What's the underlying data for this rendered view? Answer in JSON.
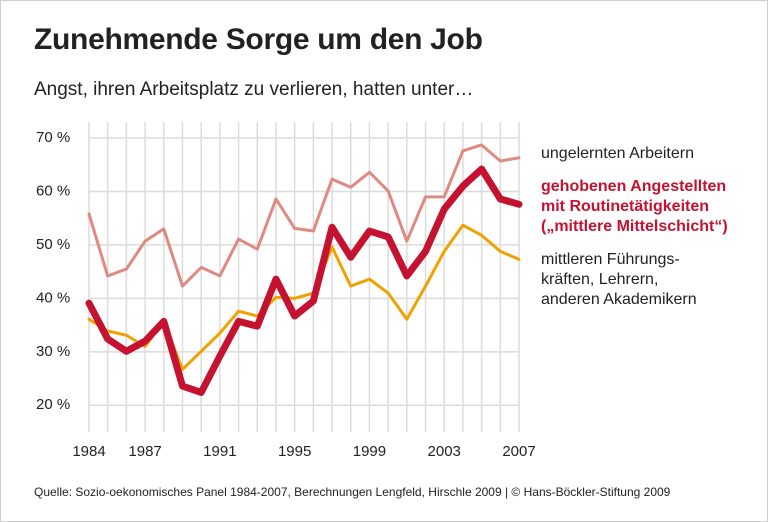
{
  "chart_data": {
    "type": "line",
    "title": "Zunehmende Sorge um den Job",
    "subtitle": "Angst, ihren Arbeitsplatz zu verlieren, hatten unter…",
    "source": "Quelle: Sozio-oekonomisches Panel 1984-2007, Berechnungen Lengfeld, Hirschle 2009  | © Hans-Böckler-Stiftung 2009",
    "x": [
      1984,
      1985,
      1986,
      1987,
      1988,
      1989,
      1990,
      1991,
      1992,
      1993,
      1994,
      1995,
      1996,
      1997,
      1998,
      1999,
      2000,
      2001,
      2002,
      2003,
      2004,
      2005,
      2006,
      2007
    ],
    "xlim": [
      1984,
      2007
    ],
    "xticks": [
      1984,
      1987,
      1991,
      1995,
      1999,
      2003,
      2007
    ],
    "ylim": [
      15,
      73
    ],
    "yticks": [
      {
        "value": 20,
        "label": "20 %"
      },
      {
        "value": 30,
        "label": "30 %"
      },
      {
        "value": 40,
        "label": "40 %"
      },
      {
        "value": 50,
        "label": "50 %"
      },
      {
        "value": 60,
        "label": "60 %"
      },
      {
        "value": 70,
        "label": "70 %"
      }
    ],
    "grid": true,
    "series": [
      {
        "name": "ungelernten Arbeitern",
        "color": "#df8a80",
        "line_width": 3,
        "values": [
          55.8,
          44.2,
          45.5,
          50.7,
          53,
          42.3,
          45.8,
          44.2,
          51.1,
          49.2,
          58.6,
          53.1,
          52.6,
          62.3,
          60.8,
          63.6,
          60.1,
          50.7,
          59,
          59,
          67.6,
          68.7,
          65.7,
          66.3
        ]
      },
      {
        "name": "gehobenen Angestellten\nmit Routinetätigkeiten\n(„mittlere Mittelschicht“)",
        "color": "#c41230",
        "line_width": 7,
        "values": [
          39.1,
          32.4,
          30.1,
          32,
          35.7,
          23.6,
          22.4,
          29.2,
          35.7,
          34.8,
          43.6,
          36.7,
          39.5,
          53.3,
          47.7,
          52.6,
          51.5,
          44.2,
          48.8,
          56.7,
          61,
          64.2,
          58.6,
          57.6
        ]
      },
      {
        "name": "mittleren Führungs-\nkräften, Lehrern,\nanderen Akademikern",
        "color": "#f0a202",
        "line_width": 3,
        "values": [
          36.1,
          33.9,
          33.1,
          31,
          35.7,
          26.7,
          30.1,
          33.5,
          37.6,
          36.7,
          40.2,
          40,
          41,
          49.6,
          42.3,
          43.6,
          41,
          36.1,
          42.3,
          48.8,
          53.7,
          51.8,
          48.8,
          47.3
        ]
      }
    ]
  }
}
